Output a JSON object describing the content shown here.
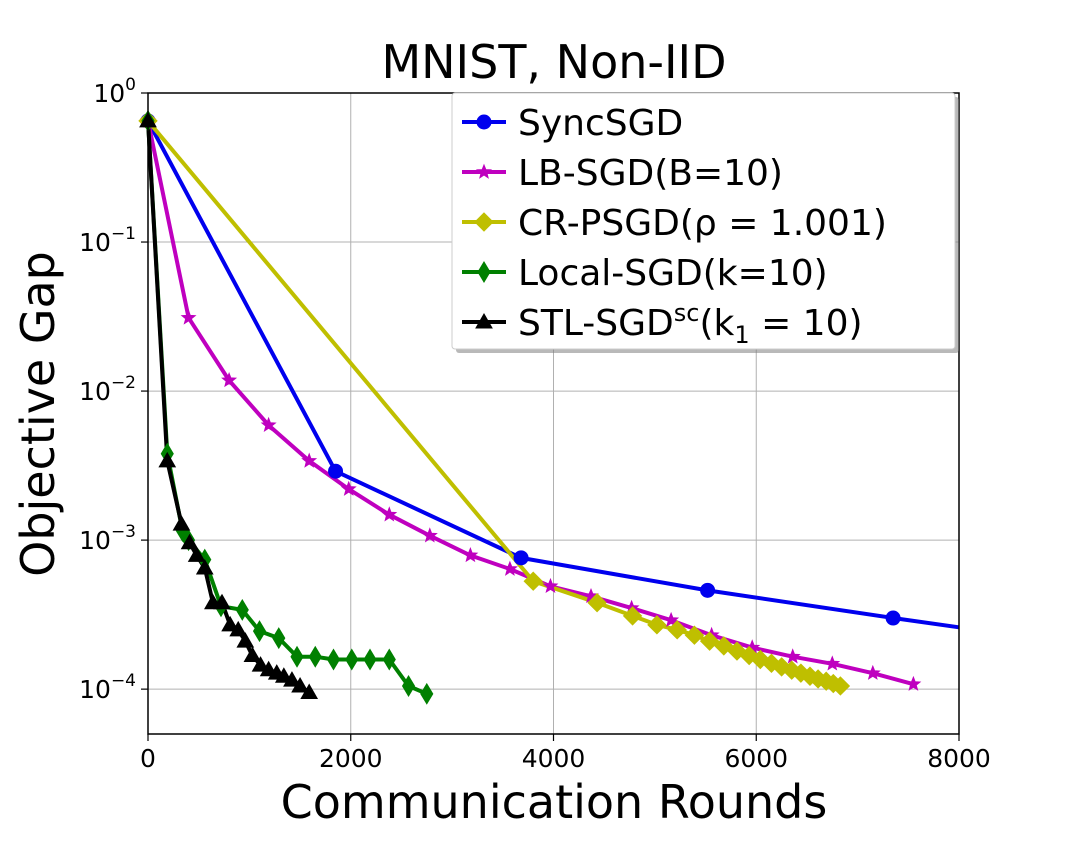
{
  "chart_data": {
    "type": "line",
    "title": "MNIST, Non-IID",
    "xlabel": "Communication Rounds",
    "ylabel": "Objective Gap",
    "xlim": [
      0,
      8000
    ],
    "ylim": [
      5e-05,
      1
    ],
    "yscale": "log",
    "grid": true,
    "legend_position": "top-right",
    "x_ticks": [
      {
        "value": 0,
        "label": "0"
      },
      {
        "value": 2000,
        "label": "2000"
      },
      {
        "value": 4000,
        "label": "4000"
      },
      {
        "value": 6000,
        "label": "6000"
      },
      {
        "value": 8000,
        "label": "8000"
      }
    ],
    "y_ticks": [
      {
        "value": 1,
        "base": "10",
        "exp": "0"
      },
      {
        "value": 0.1,
        "base": "10",
        "exp": "−1"
      },
      {
        "value": 0.01,
        "base": "10",
        "exp": "−2"
      },
      {
        "value": 0.001,
        "base": "10",
        "exp": "−3"
      },
      {
        "value": 0.0001,
        "base": "10",
        "exp": "−4"
      }
    ],
    "series": [
      {
        "name": "SyncSGD",
        "label_main": "SyncSGD",
        "label_sup": "",
        "label_tail": "",
        "color": "#0000ee",
        "marker": "circle",
        "x": [
          0,
          1850,
          3680,
          5520,
          7350,
          8000
        ],
        "y": [
          0.65,
          0.0029,
          0.00076,
          0.00046,
          0.0003,
          0.00026
        ],
        "marker_count": 5
      },
      {
        "name": "LB-SGD(B=10)",
        "label_main": "LB-SGD(B=10)",
        "label_sup": "",
        "label_tail": "",
        "color": "#bf00bf",
        "marker": "star",
        "x": [
          0,
          400,
          800,
          1190,
          1590,
          1980,
          2380,
          2780,
          3180,
          3570,
          3970,
          4370,
          4770,
          5160,
          5560,
          5960,
          6360,
          6750,
          7150,
          7550
        ],
        "y": [
          0.65,
          0.031,
          0.0118,
          0.0059,
          0.0034,
          0.0022,
          0.00148,
          0.00107,
          0.00079,
          0.00064,
          0.00049,
          0.00042,
          0.00035,
          0.00029,
          0.00023,
          0.00019,
          0.000165,
          0.000148,
          0.000128,
          0.000108
        ],
        "marker_count": 20
      },
      {
        "name": "CR-PSGD(ρ = 1.001)",
        "label_main": "CR-PSGD(ρ = 1.001)",
        "label_sup": "",
        "label_tail": "",
        "color": "#bfbf00",
        "marker": "diamond",
        "x": [
          0,
          3800,
          4430,
          4780,
          5020,
          5220,
          5390,
          5540,
          5680,
          5810,
          5930,
          6040,
          6150,
          6250,
          6350,
          6440,
          6530,
          6610,
          6690,
          6760,
          6830
        ],
        "y": [
          0.65,
          0.00053,
          0.00038,
          0.00031,
          0.00027,
          0.00025,
          0.00023,
          0.00021,
          0.000195,
          0.00018,
          0.000168,
          0.000158,
          0.000149,
          0.000141,
          0.000134,
          0.000128,
          0.000122,
          0.000117,
          0.000113,
          0.000109,
          0.000105
        ],
        "marker_count": 21
      },
      {
        "name": "Local-SGD(k=10)",
        "label_main": "Local-SGD(k=10)",
        "label_sup": "",
        "label_tail": "",
        "color": "#008000",
        "marker": "thin_diamond",
        "x": [
          0,
          190,
          340,
          400,
          560,
          720,
          930,
          1100,
          1290,
          1470,
          1650,
          1830,
          2010,
          2190,
          2380,
          2570,
          2750
        ],
        "y": [
          0.65,
          0.0038,
          0.00115,
          0.001,
          0.00074,
          0.00036,
          0.00034,
          0.000245,
          0.00022,
          0.000165,
          0.000165,
          0.000158,
          0.000158,
          0.000158,
          0.000158,
          0.000105,
          9.3e-05
        ],
        "marker_count": 17
      },
      {
        "name": "STL-SGDsc(k1 = 10)",
        "label_main": "STL-SGD",
        "label_sup": "sc",
        "label_tail": "(k",
        "label_sub": "1",
        "label_end": " = 10)",
        "color": "#000000",
        "marker": "triangle",
        "x": [
          0,
          190,
          330,
          410,
          480,
          560,
          640,
          730,
          810,
          890,
          960,
          1030,
          1110,
          1190,
          1270,
          1340,
          1420,
          1500,
          1590
        ],
        "y": [
          0.65,
          0.0034,
          0.00128,
          0.00096,
          0.00079,
          0.00065,
          0.00038,
          0.00038,
          0.00027,
          0.00025,
          0.00021,
          0.000168,
          0.000145,
          0.000135,
          0.000128,
          0.000122,
          0.000115,
          0.000105,
          9.5e-05
        ],
        "marker_count": 19
      }
    ]
  }
}
